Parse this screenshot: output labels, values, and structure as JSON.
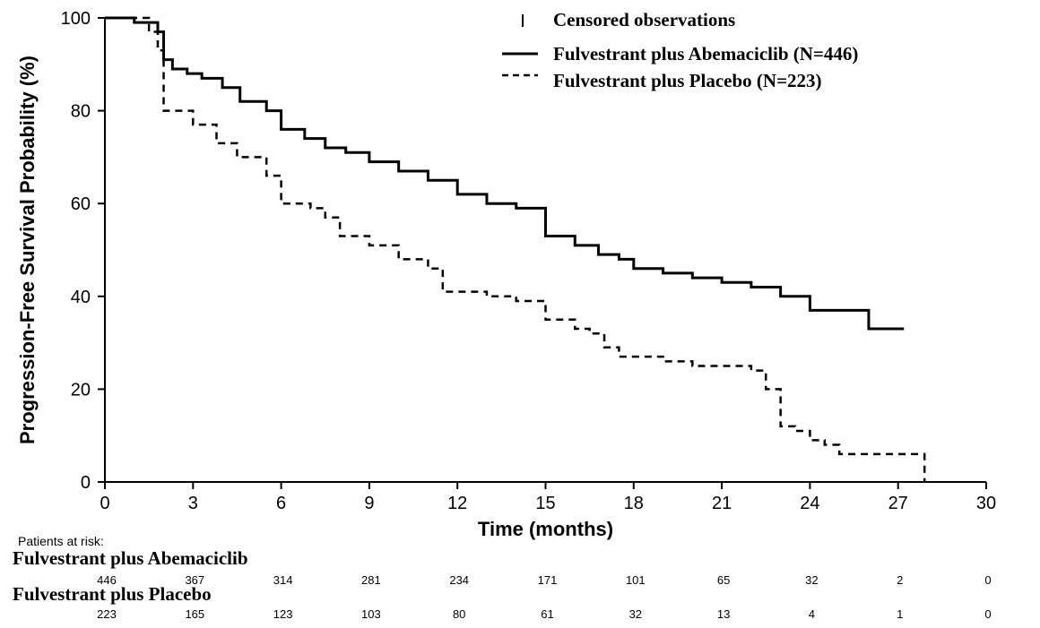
{
  "chart_data": {
    "type": "line",
    "subtype": "kaplan-meier",
    "title": "",
    "xlabel": "Time (months)",
    "ylabel": "Progression-Free Survival Probability (%)",
    "xlim": [
      0,
      30
    ],
    "ylim": [
      0,
      100
    ],
    "x_ticks": [
      0,
      3,
      6,
      9,
      12,
      15,
      18,
      21,
      24,
      27,
      30
    ],
    "y_ticks": [
      0,
      20,
      40,
      60,
      80,
      100
    ],
    "grid": false,
    "legend_position": "top-right",
    "legend": {
      "censored_label": "Censored observations",
      "entries": [
        {
          "label": "Fulvestrant plus Abemaciclib (N=446)",
          "style": "solid"
        },
        {
          "label": "Fulvestrant plus Placebo (N=223)",
          "style": "dashed"
        }
      ]
    },
    "series": [
      {
        "name": "Fulvestrant plus Abemaciclib",
        "style": "solid",
        "color": "#000000",
        "x": [
          0,
          1.0,
          1.8,
          2.0,
          2.3,
          2.8,
          3.3,
          4.0,
          4.6,
          5.5,
          6.0,
          6.8,
          7.5,
          8.2,
          9.0,
          10.0,
          11.0,
          12.0,
          13.0,
          14.0,
          15.0,
          16.0,
          16.8,
          17.5,
          18.0,
          19.0,
          20.0,
          21.0,
          22.0,
          23.0,
          24.0,
          25.0,
          26.0,
          27.2
        ],
        "y": [
          100,
          99,
          97,
          91,
          89,
          88,
          87,
          85,
          82,
          80,
          76,
          74,
          72,
          71,
          69,
          67,
          65,
          62,
          60,
          59,
          53,
          51,
          49,
          48,
          46,
          45,
          44,
          43,
          42,
          40,
          37,
          37,
          33,
          33
        ]
      },
      {
        "name": "Fulvestrant plus Placebo",
        "style": "dashed",
        "color": "#000000",
        "x": [
          0,
          1.5,
          1.8,
          2.0,
          3.0,
          3.8,
          4.5,
          5.5,
          6.0,
          7.0,
          7.5,
          8.0,
          9.0,
          10.0,
          11.0,
          11.5,
          13.0,
          14.0,
          15.0,
          16.0,
          16.5,
          17.0,
          17.5,
          18.0,
          19.0,
          20.0,
          21.0,
          22.0,
          22.5,
          23.0,
          23.5,
          24.0,
          24.5,
          25.0,
          27.9
        ],
        "y": [
          100,
          97,
          93,
          80,
          77,
          73,
          70,
          66,
          60,
          59,
          57,
          53,
          51,
          48,
          46,
          41,
          40,
          39,
          35,
          33,
          32,
          29,
          27,
          27,
          26,
          25,
          25,
          24,
          20,
          12,
          11,
          9,
          8,
          6,
          0
        ]
      }
    ],
    "risk_table": {
      "title": "Patients at risk:",
      "time_points": [
        0,
        3,
        6,
        9,
        12,
        15,
        18,
        21,
        24,
        27,
        30
      ],
      "rows": [
        {
          "label": "Fulvestrant plus Abemaciclib",
          "values": [
            446,
            367,
            314,
            281,
            234,
            171,
            101,
            65,
            32,
            2,
            0
          ]
        },
        {
          "label": "Fulvestrant plus Placebo",
          "values": [
            223,
            165,
            123,
            103,
            80,
            61,
            32,
            13,
            4,
            1,
            0
          ]
        }
      ]
    }
  }
}
